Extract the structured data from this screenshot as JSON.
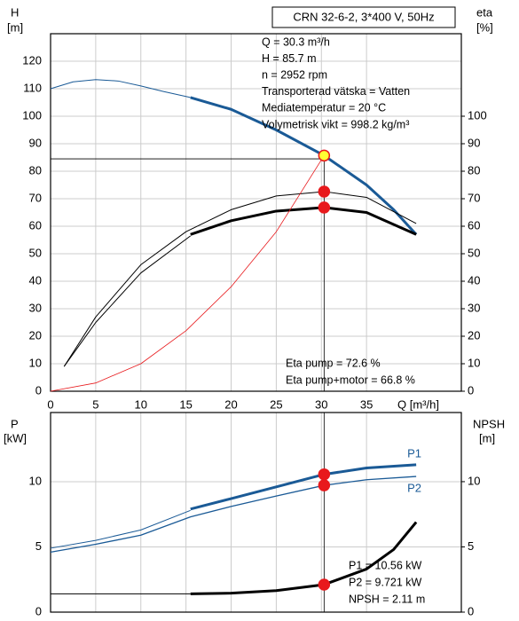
{
  "chart_data": [
    {
      "type": "line",
      "title": "CRN 32-6-2, 3*400 V, 50Hz",
      "ylabel": "H",
      "yunit": "[m]",
      "y2label": "eta",
      "y2unit": "[%]",
      "xlabel": "Q [m³/h]",
      "info": [
        "Q = 30.3 m³/h",
        "H = 85.7 m",
        "n = 2952 rpm",
        "Transporterad vätska = Vatten",
        "Mediatemperatur = 20 °C",
        "Volymetrisk vikt = 998.2 kg/m³"
      ],
      "annotations": [
        "Eta pump = 72.6 %",
        "Eta pump+motor = 66.8 %"
      ],
      "xlim": [
        0,
        45.5
      ],
      "xticks": [
        0,
        5,
        10,
        15,
        20,
        25,
        30,
        35
      ],
      "ylim": [
        0,
        130
      ],
      "yticks": [
        0,
        10,
        20,
        30,
        40,
        50,
        60,
        70,
        80,
        90,
        100,
        110,
        120
      ],
      "y2lim": [
        0,
        130
      ],
      "y2ticks": [
        0,
        10,
        20,
        30,
        40,
        50,
        60,
        70,
        80,
        90,
        100
      ],
      "grid": true,
      "series": [
        {
          "color": "#1a5a96",
          "width": 1,
          "x": [
            0,
            2.5,
            5,
            7.5,
            10,
            12.5,
            15.5
          ],
          "values": [
            110,
            112.5,
            113.3,
            112.8,
            111,
            109,
            106.8
          ]
        },
        {
          "color": "#1a5a96",
          "width": 3,
          "x": [
            15.5,
            20,
            25,
            30.3,
            35,
            38,
            40.5
          ],
          "values": [
            106.8,
            102.5,
            95,
            85.7,
            75,
            66,
            57
          ]
        },
        {
          "color": "#000000",
          "width": 1,
          "axis": "y2",
          "x": [
            1.5,
            5,
            10,
            15,
            20,
            25,
            30.3,
            35,
            40.5
          ],
          "values": [
            9,
            27,
            46,
            58,
            66,
            71,
            72.6,
            70.5,
            61
          ]
        },
        {
          "color": "#000000",
          "width": 1,
          "axis": "y2",
          "x": [
            1.5,
            5,
            10,
            15.5
          ],
          "values": [
            9,
            25,
            43,
            56.5
          ]
        },
        {
          "color": "#000000",
          "width": 3,
          "axis": "y2",
          "x": [
            15.5,
            20,
            25,
            30.3,
            35,
            40.5
          ],
          "values": [
            57,
            62,
            65.5,
            66.8,
            65,
            57
          ]
        },
        {
          "color": "#e8191c",
          "width": 0.8,
          "x": [
            0,
            5,
            10,
            15,
            20,
            25,
            30.3
          ],
          "values": [
            0,
            3,
            10,
            22,
            38,
            58,
            85.7
          ]
        }
      ],
      "guides": [
        {
          "x": [
            0,
            30.3
          ],
          "y": [
            84.5,
            84.5
          ]
        },
        {
          "x": [
            30.3,
            30.3
          ],
          "y": [
            85.7,
            0
          ]
        }
      ],
      "points": [
        {
          "x": 30.3,
          "y": 85.7,
          "color": "#ffff33"
        },
        {
          "x": 30.3,
          "y": 72.6,
          "color": "#e8191c"
        },
        {
          "x": 30.3,
          "y": 66.8,
          "color": "#e8191c"
        }
      ]
    },
    {
      "type": "line",
      "ylabel": "P",
      "yunit": "[kW]",
      "y2label": "NPSH",
      "y2unit": "[m]",
      "annotations": [
        "P1 = 10.56 kW",
        "P2 = 9.721 kW",
        "NPSH = 2.11 m"
      ],
      "xlim": [
        0,
        45.5
      ],
      "xticks": [
        0,
        5,
        10,
        15,
        20,
        25,
        30,
        35
      ],
      "ylim": [
        0,
        15.3
      ],
      "yticks": [
        0,
        5,
        10
      ],
      "y2lim": [
        0,
        15.3
      ],
      "y2ticks": [
        0,
        5,
        10
      ],
      "grid": true,
      "series": [
        {
          "color": "#1a5a96",
          "width": 1,
          "x": [
            0,
            5,
            10,
            15.5
          ],
          "values": [
            4.9,
            5.5,
            6.3,
            7.8
          ]
        },
        {
          "name": "P1",
          "color": "#1a5a96",
          "width": 3,
          "x": [
            15.5,
            20,
            25,
            30.3,
            35,
            40.5
          ],
          "values": [
            7.9,
            8.7,
            9.6,
            10.56,
            11.05,
            11.3
          ]
        },
        {
          "name": "P2",
          "color": "#1a5a96",
          "width": 1.3,
          "x": [
            0,
            5,
            10,
            15.5,
            20,
            25,
            30.3,
            35,
            40.5
          ],
          "values": [
            4.6,
            5.2,
            5.9,
            7.3,
            8.1,
            8.9,
            9.72,
            10.15,
            10.4
          ]
        },
        {
          "color": "#000000",
          "width": 1,
          "axis": "y2",
          "x": [
            0,
            15.5
          ],
          "values": [
            1.4,
            1.4
          ]
        },
        {
          "color": "#000000",
          "width": 3,
          "axis": "y2",
          "x": [
            15.5,
            20,
            25,
            30.3,
            35,
            38,
            40.5
          ],
          "values": [
            1.4,
            1.45,
            1.65,
            2.11,
            3.3,
            4.8,
            6.9
          ]
        }
      ],
      "guides": [
        {
          "x": [
            30.3,
            30.3
          ],
          "y": [
            15.3,
            0
          ]
        }
      ],
      "points": [
        {
          "x": 30.3,
          "y": 10.56,
          "color": "#e8191c"
        },
        {
          "x": 30.3,
          "y": 9.72,
          "color": "#e8191c"
        },
        {
          "x": 30.3,
          "y": 2.11,
          "color": "#e8191c",
          "axis": "y2"
        }
      ]
    }
  ]
}
